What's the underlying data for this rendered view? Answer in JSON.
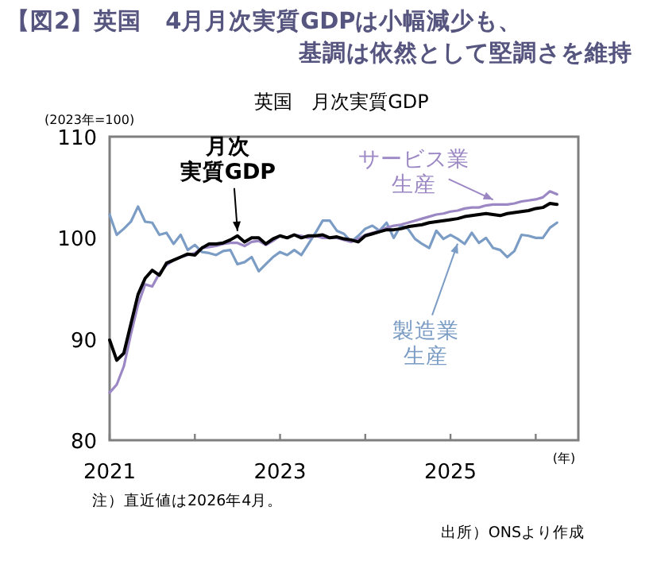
{
  "chart_data": {
    "type": "line",
    "title": "【図2】英国　4月月次実質GDPは小幅減少も、基調は依然として堅調さを維持",
    "subtitle": "英国　月次実質GDP",
    "ylabel": "(2023年=100)",
    "xlabel": "(年)",
    "annotations": [
      "注）直近値は2026年4月。",
      "出所）ONSより作成"
    ],
    "x": [
      "2021-01",
      "2021-02",
      "2021-03",
      "2021-04",
      "2021-05",
      "2021-06",
      "2021-07",
      "2021-08",
      "2021-09",
      "2021-10",
      "2021-11",
      "2021-12",
      "2022-01",
      "2022-02",
      "2022-03",
      "2022-04",
      "2022-05",
      "2022-06",
      "2022-07",
      "2022-08",
      "2022-09",
      "2022-10",
      "2022-11",
      "2022-12",
      "2023-01",
      "2023-02",
      "2023-03",
      "2023-04",
      "2023-05",
      "2023-06",
      "2023-07",
      "2023-08",
      "2023-09",
      "2023-10",
      "2023-11",
      "2023-12",
      "2024-01",
      "2024-02",
      "2024-03",
      "2024-04",
      "2024-05",
      "2024-06",
      "2024-07",
      "2024-08",
      "2024-09",
      "2024-10",
      "2024-11",
      "2024-12",
      "2025-01",
      "2025-02",
      "2025-03",
      "2025-04",
      "2025-05",
      "2025-06",
      "2025-07",
      "2025-08",
      "2025-09",
      "2025-10",
      "2025-11",
      "2025-12",
      "2026-01",
      "2026-02",
      "2026-03",
      "2026-04"
    ],
    "series": [
      {
        "name": "月次実質GDP",
        "color": "#000000",
        "values": [
          89.9,
          87.9,
          88.6,
          91.5,
          94.4,
          96.0,
          96.8,
          96.3,
          97.5,
          97.8,
          98.1,
          98.4,
          98.3,
          99.0,
          99.4,
          99.4,
          99.5,
          99.8,
          100.2,
          99.6,
          100.0,
          100.0,
          99.4,
          99.9,
          100.2,
          100.0,
          100.3,
          100.0,
          100.2,
          100.2,
          100.3,
          100.0,
          100.1,
          99.9,
          99.8,
          99.6,
          100.2,
          100.4,
          100.6,
          100.8,
          100.8,
          100.9,
          101.1,
          101.2,
          101.3,
          101.5,
          101.6,
          101.7,
          101.8,
          101.9,
          102.1,
          102.2,
          102.3,
          102.4,
          102.3,
          102.2,
          102.4,
          102.5,
          102.6,
          102.7,
          102.9,
          103.0,
          103.4,
          103.3
        ]
      },
      {
        "name": "サービス業生産",
        "color": "#9b87c4",
        "values": [
          84.7,
          85.5,
          87.3,
          90.5,
          93.4,
          95.4,
          95.2,
          96.5,
          97.3,
          97.8,
          98.1,
          98.3,
          98.5,
          99.0,
          99.1,
          99.2,
          99.4,
          99.5,
          99.5,
          99.2,
          99.6,
          99.7,
          99.3,
          99.7,
          100.2,
          100.0,
          100.3,
          100.2,
          100.0,
          100.2,
          100.0,
          100.0,
          100.0,
          99.8,
          99.6,
          99.9,
          100.3,
          100.5,
          100.7,
          101.0,
          101.2,
          101.3,
          101.5,
          101.7,
          101.9,
          102.1,
          102.3,
          102.4,
          102.6,
          102.7,
          102.9,
          103.0,
          103.0,
          103.2,
          103.3,
          103.3,
          103.3,
          103.4,
          103.6,
          103.7,
          103.8,
          104.0,
          104.6,
          104.3
        ]
      },
      {
        "name": "製造業生産",
        "color": "#7b9cc4",
        "values": [
          102.3,
          100.3,
          100.9,
          101.6,
          103.1,
          101.6,
          101.5,
          100.3,
          100.5,
          99.4,
          100.3,
          98.8,
          99.3,
          98.6,
          98.5,
          98.3,
          98.7,
          98.8,
          97.4,
          97.6,
          98.1,
          96.7,
          97.4,
          98.1,
          98.6,
          98.3,
          98.8,
          98.3,
          99.4,
          100.5,
          101.7,
          101.7,
          100.7,
          100.4,
          99.6,
          100.2,
          100.9,
          101.2,
          100.7,
          101.5,
          100.0,
          101.2,
          100.9,
          99.9,
          99.4,
          99.0,
          100.7,
          99.9,
          100.3,
          99.9,
          99.4,
          100.5,
          99.5,
          100.0,
          99.0,
          98.8,
          98.1,
          98.7,
          100.3,
          100.2,
          100.0,
          100.0,
          101.0,
          101.5
        ]
      }
    ],
    "xlim": [
      "2021-01",
      "2026-07"
    ],
    "xticks": [
      {
        "value": "2021-01",
        "label": "2021"
      },
      {
        "value": "2022-01",
        "label": null
      },
      {
        "value": "2023-01",
        "label": "2023"
      },
      {
        "value": "2024-01",
        "label": null
      },
      {
        "value": "2025-01",
        "label": "2025"
      },
      {
        "value": "2026-01",
        "label": null
      }
    ],
    "ylim": [
      80,
      110
    ],
    "yticks": [
      80,
      90,
      100,
      110
    ],
    "grid": false,
    "legend": false,
    "marker": "none",
    "line_style": "solid"
  }
}
